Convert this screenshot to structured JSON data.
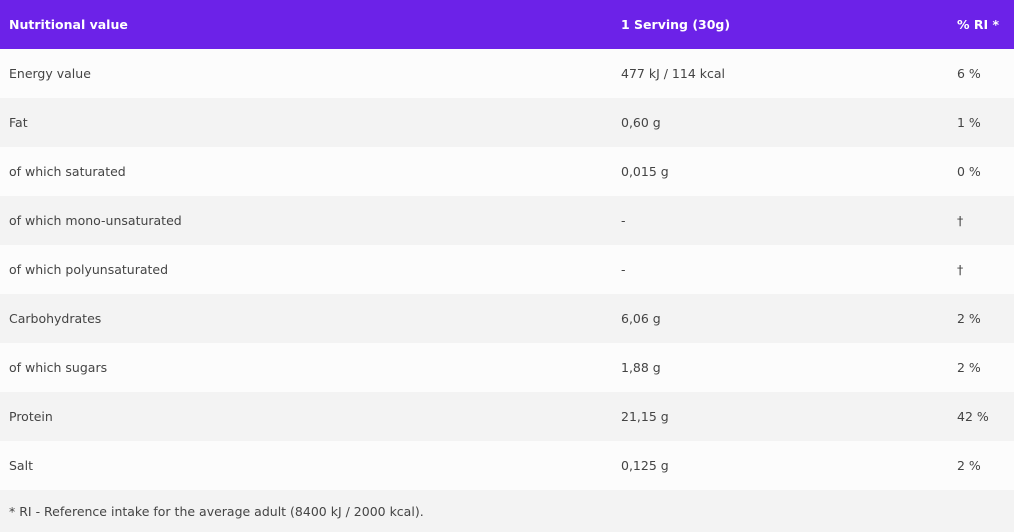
{
  "header": {
    "name": "Nutritional value",
    "serving": "1 Serving (30g)",
    "ri": "% RI *"
  },
  "rows": [
    {
      "name": "Energy value",
      "serving": "477 kJ / 114 kcal",
      "ri": "6 %"
    },
    {
      "name": "Fat",
      "serving": "0,60 g",
      "ri": "1 %"
    },
    {
      "name": "of which saturated",
      "serving": "0,015 g",
      "ri": "0 %"
    },
    {
      "name": "of which mono-unsaturated",
      "serving": "-",
      "ri": "†"
    },
    {
      "name": "of which polyunsaturated",
      "serving": "-",
      "ri": "†"
    },
    {
      "name": "Carbohydrates",
      "serving": "6,06 g",
      "ri": "2 %"
    },
    {
      "name": "of which sugars",
      "serving": "1,88 g",
      "ri": "2 %"
    },
    {
      "name": "Protein",
      "serving": "21,15 g",
      "ri": "42 %"
    },
    {
      "name": "Salt",
      "serving": "0,125 g",
      "ri": "2 %"
    }
  ],
  "footnote": "* RI - Reference intake for the average adult (8400 kJ / 2000 kcal).",
  "colors": {
    "header_bg": "#6c22e8",
    "row_alt": "#f3f3f3"
  }
}
